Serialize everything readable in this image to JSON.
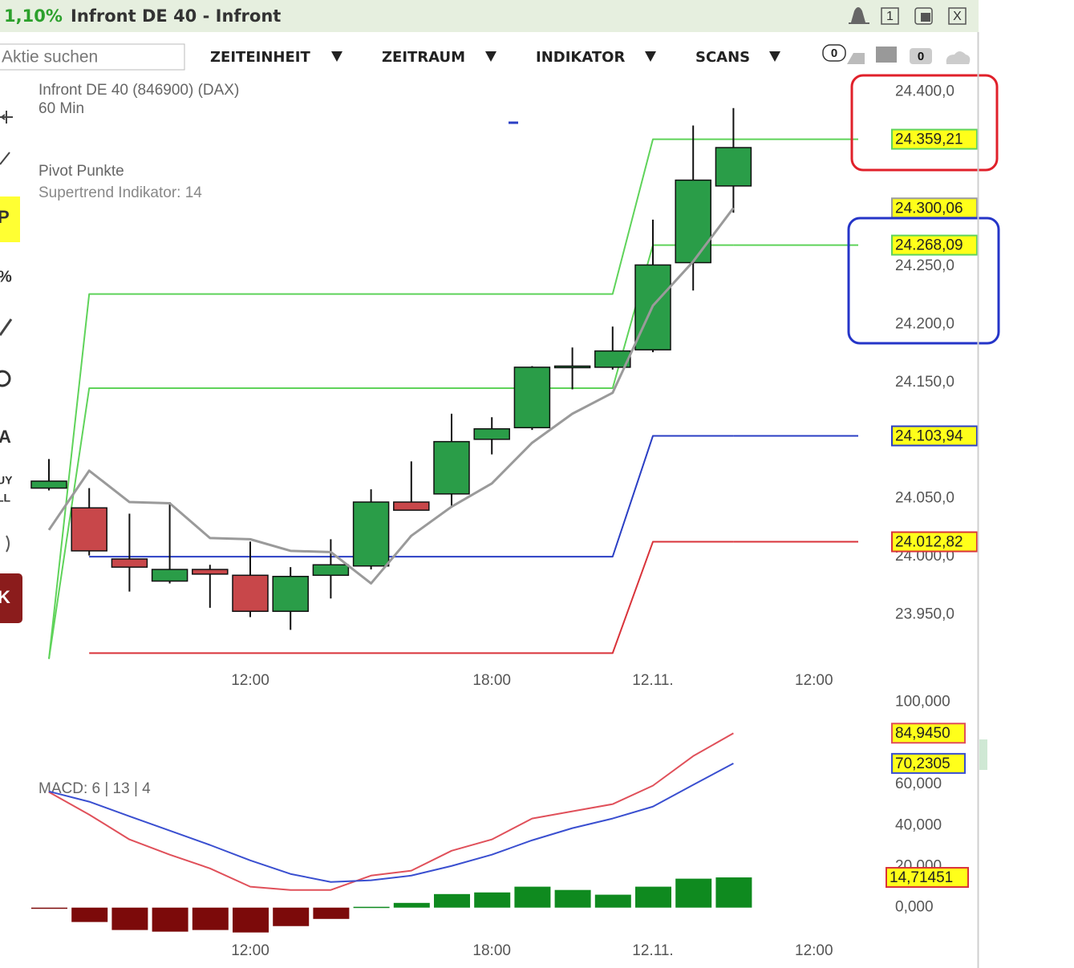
{
  "header": {
    "change": "1,10%",
    "title": "Infront DE 40 - Infront",
    "buttons": [
      "1",
      "X"
    ]
  },
  "toolbar": {
    "search_placeholder": "Aktie suchen",
    "menus": [
      "ZEITEINHEIT",
      "ZEITRAUM",
      "INDIKATOR",
      "SCANS"
    ],
    "badges": [
      "0",
      "0"
    ]
  },
  "sidebar": {
    "icons": [
      "P",
      "%",
      "A",
      "UY",
      "LL",
      "K"
    ]
  },
  "chart_data": [
    {
      "type": "candlestick",
      "title": "Infront DE 40 (846900) (DAX)",
      "subtitle": "60 Min",
      "annotations": [
        "Pivot Punkte",
        "Supertrend Indikator: 14"
      ],
      "categories": [
        null,
        null,
        null,
        null,
        null,
        "12:00",
        null,
        null,
        null,
        null,
        null,
        "18:00",
        null,
        null,
        null,
        "12.11.",
        null,
        null,
        null,
        "12:00"
      ],
      "open": [
        24059,
        24042,
        23998,
        23979,
        23989,
        23984,
        23953,
        23984,
        23992,
        24047,
        24054,
        24101,
        24111,
        24163,
        24163,
        24178,
        24253,
        24319,
        null,
        null
      ],
      "high": [
        24084,
        24059,
        24037,
        24047,
        23993,
        24013,
        23991,
        24015,
        24058,
        24082,
        24123,
        24120,
        24164,
        24180,
        24198,
        24290,
        24371,
        24386,
        null,
        null
      ],
      "low": [
        24057,
        24001,
        23970,
        23977,
        23956,
        23948,
        23937,
        23964,
        23989,
        24040,
        24043,
        24088,
        24109,
        24144,
        24161,
        24176,
        24229,
        24296,
        null,
        null
      ],
      "close": [
        24065,
        24005,
        23991,
        23989,
        23985,
        23953,
        23983,
        23993,
        24047,
        24040,
        24099,
        24110,
        24163,
        24164,
        24177,
        24251,
        24324,
        24352,
        null,
        null
      ],
      "up_color": "#2a9d48",
      "down_color": "#c8474a",
      "series": [
        {
          "color": "#5fd35a",
          "values": [
            23912,
            24226,
            24226,
            24226,
            24226,
            24226,
            24226,
            24226,
            24226,
            24226,
            24226,
            24226,
            24226,
            24226,
            24226,
            24359.21,
            24359.21,
            24359.21,
            null,
            null
          ],
          "value_labels": [
            null,
            null,
            null,
            null,
            null,
            null,
            null,
            null,
            null,
            null,
            null,
            null,
            null,
            null,
            null,
            null,
            null,
            "24.359,21",
            null,
            null
          ]
        },
        {
          "color": "#5fd35a",
          "values": [
            23912,
            24145,
            24145,
            24145,
            24145,
            24145,
            24145,
            24145,
            24145,
            24145,
            24145,
            24145,
            24145,
            24145,
            24145,
            24268.09,
            24268.09,
            24268.09,
            null,
            null
          ],
          "value_labels": [
            null,
            null,
            null,
            null,
            null,
            null,
            null,
            null,
            null,
            null,
            null,
            null,
            null,
            null,
            null,
            null,
            null,
            "24.268,09",
            null,
            null
          ]
        },
        {
          "color": "#2b3fc4",
          "values": [
            null,
            24000,
            24000,
            24000,
            24000,
            24000,
            24000,
            24000,
            24000,
            24000,
            24000,
            24000,
            24000,
            24000,
            24000,
            24103.94,
            24103.94,
            24103.94,
            null,
            null
          ],
          "value_labels": [
            null,
            null,
            null,
            null,
            null,
            null,
            null,
            null,
            null,
            null,
            null,
            null,
            null,
            null,
            null,
            null,
            null,
            "24.103,94",
            null,
            null
          ]
        },
        {
          "color": "#d9333a",
          "values": [
            null,
            23917,
            23917,
            23917,
            23917,
            23917,
            23917,
            23917,
            23917,
            23917,
            23917,
            23917,
            23917,
            23917,
            23917,
            24012.82,
            24012.82,
            24012.82,
            null,
            null
          ],
          "value_labels": [
            null,
            null,
            null,
            null,
            null,
            null,
            null,
            null,
            null,
            null,
            null,
            null,
            null,
            null,
            null,
            null,
            null,
            "24.012,82",
            null,
            null
          ]
        },
        {
          "color": "#9a9a9a",
          "width": 3,
          "values": [
            24023,
            24074,
            24047,
            24046,
            24016,
            24015,
            24005,
            24004,
            23977,
            24018,
            24043,
            24063,
            24098,
            24123,
            24141,
            24216,
            24254,
            24300.06,
            null,
            null
          ],
          "value_labels": [
            null,
            null,
            null,
            null,
            null,
            null,
            null,
            null,
            null,
            null,
            null,
            null,
            null,
            null,
            null,
            null,
            null,
            "24.300,06",
            null,
            null
          ]
        }
      ],
      "ylim": [
        23880,
        24410
      ],
      "yticks": [
        {
          "value": 24400,
          "label": "24.400,0"
        },
        {
          "value": 24250,
          "label": "24.250,0"
        },
        {
          "value": 24200,
          "label": "24.200,0"
        },
        {
          "value": 24150,
          "label": "24.150,0"
        },
        {
          "value": 24050,
          "label": "24.050,0"
        },
        {
          "value": 24000,
          "label": "24.000,0"
        },
        {
          "value": 23950,
          "label": "23.950,0"
        }
      ]
    },
    {
      "type": "macd",
      "title": "MACD: 6 | 13 | 4",
      "categories": [
        null,
        null,
        null,
        null,
        null,
        "12:00",
        null,
        null,
        null,
        null,
        null,
        "18:00",
        null,
        null,
        null,
        "12.11.",
        null,
        null,
        null,
        "12:00"
      ],
      "histogram": {
        "up_color": "#0f8a1f",
        "down_color": "#7c0a0a",
        "label_color": "#d9333a",
        "values": [
          -0.4,
          -7,
          -10.9,
          -11.7,
          -10.9,
          -12.1,
          -9,
          -5.5,
          0.4,
          2.3,
          6.6,
          7.4,
          10.2,
          8.6,
          6.3,
          10.2,
          14.1,
          14.71451,
          null,
          null
        ],
        "value_labels": [
          null,
          null,
          null,
          null,
          null,
          null,
          null,
          null,
          null,
          null,
          null,
          null,
          null,
          null,
          null,
          null,
          null,
          "14,71451",
          null,
          null
        ]
      },
      "series": [
        {
          "color": "#e0505a",
          "values": [
            56.3,
            45.3,
            33.2,
            25.8,
            19.1,
            10.2,
            8.6,
            8.6,
            15.6,
            18,
            27.7,
            33.2,
            43.4,
            46.9,
            50.4,
            59.4,
            73.8,
            84.945,
            null,
            null
          ],
          "value_labels": [
            null,
            null,
            null,
            null,
            null,
            null,
            null,
            null,
            null,
            null,
            null,
            null,
            null,
            null,
            null,
            null,
            null,
            "84,9450",
            null,
            null
          ]
        },
        {
          "color": "#3a4fd0",
          "values": [
            56.6,
            51.6,
            44.5,
            37.5,
            30.5,
            23,
            16.4,
            12.5,
            13.3,
            15.6,
            20.3,
            25.8,
            32.8,
            38.7,
            43.4,
            49.2,
            59.8,
            70.2305,
            null,
            null
          ],
          "value_labels": [
            null,
            null,
            null,
            null,
            null,
            null,
            null,
            null,
            null,
            null,
            null,
            null,
            null,
            null,
            null,
            null,
            null,
            "70,2305",
            null,
            null
          ]
        }
      ],
      "ylim": [
        -13,
        103
      ],
      "yticks": [
        {
          "value": 100,
          "label": "100,000"
        },
        {
          "value": 60,
          "label": "60,000"
        },
        {
          "value": 40,
          "label": "40,000"
        },
        {
          "value": 20,
          "label": "20,000"
        },
        {
          "value": 0,
          "label": "0,000"
        }
      ]
    }
  ]
}
